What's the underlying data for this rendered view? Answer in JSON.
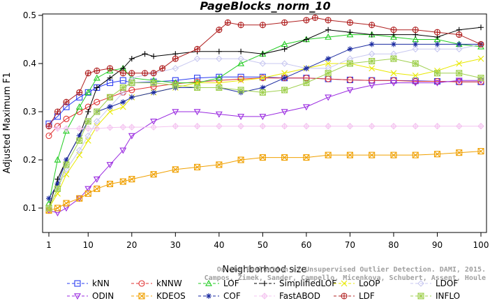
{
  "chart_data": {
    "type": "line",
    "title": "PageBlocks_norm_10",
    "xlabel": "Neighborhood size",
    "ylabel": "Adjusted Maximum F1",
    "xlim": [
      1,
      100
    ],
    "ylim": [
      0.08,
      0.5
    ],
    "xticks": [
      "1",
      "10",
      "20",
      "30",
      "40",
      "50",
      "60",
      "70",
      "80",
      "90",
      "100"
    ],
    "yticks": [
      "0.1",
      "0.2",
      "0.3",
      "0.4",
      "0.5"
    ],
    "legend_position": "bottom",
    "grid": false,
    "watermark": "Campos, Zimek, Sander, Campello, Micenkova, Schubert, Assent, Houle",
    "watermark_line1": "On the Evaluation of Unsupervised Outlier Detection. DAMI, 2015.",
    "series": [
      {
        "name": "kNN",
        "color": "#2a3cf0",
        "marker": "square",
        "x": [
          1,
          3,
          5,
          8,
          10,
          12,
          15,
          18,
          20,
          25,
          30,
          35,
          40,
          45,
          50,
          55,
          60,
          65,
          70,
          75,
          80,
          85,
          90,
          95,
          100
        ],
        "values": [
          0.275,
          0.29,
          0.31,
          0.33,
          0.34,
          0.35,
          0.36,
          0.365,
          0.36,
          0.362,
          0.365,
          0.37,
          0.372,
          0.372,
          0.372,
          0.37,
          0.37,
          0.368,
          0.366,
          0.365,
          0.365,
          0.364,
          0.363,
          0.362,
          0.362
        ]
      },
      {
        "name": "kNNW",
        "color": "#e03030",
        "marker": "circle",
        "x": [
          1,
          3,
          5,
          8,
          10,
          12,
          15,
          18,
          20,
          25,
          30,
          35,
          40,
          45,
          50,
          55,
          60,
          65,
          70,
          75,
          80,
          85,
          90,
          95,
          100
        ],
        "values": [
          0.25,
          0.27,
          0.285,
          0.3,
          0.31,
          0.32,
          0.33,
          0.34,
          0.345,
          0.352,
          0.358,
          0.362,
          0.365,
          0.368,
          0.37,
          0.37,
          0.37,
          0.368,
          0.366,
          0.365,
          0.365,
          0.363,
          0.363,
          0.362,
          0.362
        ]
      },
      {
        "name": "LOF",
        "color": "#22cc22",
        "marker": "triangle",
        "x": [
          1,
          3,
          5,
          8,
          10,
          12,
          15,
          18,
          20,
          25,
          30,
          35,
          40,
          45,
          50,
          55,
          60,
          65,
          70,
          75,
          80,
          85,
          90,
          95,
          100
        ],
        "values": [
          0.11,
          0.2,
          0.26,
          0.31,
          0.34,
          0.37,
          0.385,
          0.39,
          0.37,
          0.365,
          0.36,
          0.36,
          0.37,
          0.4,
          0.42,
          0.44,
          0.45,
          0.455,
          0.46,
          0.46,
          0.455,
          0.45,
          0.45,
          0.44,
          0.435
        ]
      },
      {
        "name": "SimplifiedLOF",
        "color": "#000000",
        "marker": "plus",
        "x": [
          1,
          3,
          5,
          8,
          10,
          12,
          15,
          18,
          20,
          23,
          25,
          30,
          35,
          40,
          45,
          50,
          55,
          60,
          65,
          70,
          75,
          80,
          85,
          90,
          95,
          100
        ],
        "values": [
          0.1,
          0.16,
          0.2,
          0.25,
          0.3,
          0.35,
          0.37,
          0.39,
          0.41,
          0.42,
          0.415,
          0.42,
          0.425,
          0.425,
          0.425,
          0.42,
          0.43,
          0.45,
          0.47,
          0.465,
          0.46,
          0.46,
          0.46,
          0.455,
          0.47,
          0.475
        ]
      },
      {
        "name": "LoOP",
        "color": "#e8e800",
        "marker": "cross",
        "x": [
          1,
          3,
          5,
          8,
          10,
          12,
          15,
          18,
          20,
          25,
          30,
          35,
          40,
          45,
          50,
          55,
          60,
          65,
          70,
          75,
          80,
          85,
          90,
          95,
          100
        ],
        "values": [
          0.1,
          0.13,
          0.17,
          0.21,
          0.24,
          0.27,
          0.3,
          0.31,
          0.33,
          0.34,
          0.35,
          0.36,
          0.36,
          0.365,
          0.37,
          0.38,
          0.39,
          0.4,
          0.4,
          0.39,
          0.38,
          0.375,
          0.385,
          0.4,
          0.41
        ]
      },
      {
        "name": "LDOF",
        "color": "#c8c8f0",
        "marker": "diamond",
        "x": [
          1,
          3,
          5,
          8,
          10,
          12,
          15,
          18,
          20,
          25,
          30,
          35,
          40,
          45,
          50,
          55,
          60,
          65,
          70,
          75,
          80,
          85,
          90,
          95,
          100
        ],
        "values": [
          0.1,
          0.14,
          0.18,
          0.22,
          0.25,
          0.28,
          0.31,
          0.34,
          0.37,
          0.38,
          0.39,
          0.41,
          0.41,
          0.41,
          0.4,
          0.4,
          0.39,
          0.39,
          0.41,
          0.42,
          0.42,
          0.43,
          0.43,
          0.43,
          0.44
        ]
      },
      {
        "name": "ODIN",
        "color": "#9a2ae0",
        "marker": "triangle-down",
        "x": [
          1,
          3,
          5,
          8,
          10,
          12,
          15,
          18,
          20,
          25,
          30,
          35,
          40,
          45,
          50,
          55,
          60,
          65,
          70,
          75,
          80,
          85,
          90,
          95,
          100
        ],
        "values": [
          0.095,
          0.09,
          0.1,
          0.12,
          0.14,
          0.16,
          0.19,
          0.22,
          0.25,
          0.28,
          0.3,
          0.3,
          0.295,
          0.29,
          0.29,
          0.3,
          0.31,
          0.33,
          0.345,
          0.355,
          0.36,
          0.36,
          0.36,
          0.365,
          0.365
        ]
      },
      {
        "name": "KDEOS",
        "color": "#f0a000",
        "marker": "box-x",
        "x": [
          1,
          3,
          5,
          8,
          10,
          12,
          15,
          18,
          20,
          25,
          30,
          35,
          40,
          45,
          50,
          55,
          60,
          65,
          70,
          75,
          80,
          85,
          90,
          95,
          100
        ],
        "values": [
          0.095,
          0.1,
          0.11,
          0.12,
          0.13,
          0.14,
          0.15,
          0.155,
          0.16,
          0.17,
          0.18,
          0.185,
          0.19,
          0.2,
          0.205,
          0.205,
          0.205,
          0.21,
          0.21,
          0.21,
          0.21,
          0.21,
          0.212,
          0.215,
          0.218
        ]
      },
      {
        "name": "COF",
        "color": "#1a2aa0",
        "marker": "asterisk",
        "x": [
          1,
          3,
          5,
          8,
          10,
          12,
          15,
          18,
          20,
          25,
          30,
          35,
          40,
          45,
          50,
          55,
          60,
          65,
          70,
          75,
          80,
          85,
          90,
          95,
          100
        ],
        "values": [
          0.12,
          0.15,
          0.2,
          0.25,
          0.28,
          0.3,
          0.31,
          0.32,
          0.33,
          0.34,
          0.35,
          0.35,
          0.35,
          0.34,
          0.35,
          0.37,
          0.39,
          0.41,
          0.43,
          0.44,
          0.44,
          0.44,
          0.44,
          0.44,
          0.44
        ]
      },
      {
        "name": "FastABOD",
        "color": "#f4c4f0",
        "marker": "diamond-x",
        "x": [
          1,
          3,
          5,
          8,
          10,
          12,
          15,
          18,
          20,
          25,
          30,
          35,
          40,
          45,
          50,
          55,
          60,
          65,
          70,
          75,
          80,
          85,
          90,
          95,
          100
        ],
        "values": [
          0.27,
          0.265,
          0.265,
          0.265,
          0.265,
          0.265,
          0.267,
          0.268,
          0.268,
          0.268,
          0.27,
          0.27,
          0.27,
          0.27,
          0.27,
          0.27,
          0.27,
          0.27,
          0.27,
          0.27,
          0.27,
          0.27,
          0.27,
          0.27,
          0.27
        ]
      },
      {
        "name": "LDF",
        "color": "#b02020",
        "marker": "circle-plus",
        "x": [
          1,
          3,
          5,
          8,
          10,
          12,
          15,
          18,
          20,
          23,
          25,
          27,
          30,
          35,
          40,
          42,
          45,
          50,
          55,
          60,
          62,
          65,
          70,
          75,
          80,
          85,
          90,
          95,
          100
        ],
        "values": [
          0.27,
          0.3,
          0.32,
          0.34,
          0.38,
          0.385,
          0.39,
          0.38,
          0.38,
          0.38,
          0.38,
          0.39,
          0.41,
          0.43,
          0.47,
          0.485,
          0.48,
          0.48,
          0.485,
          0.49,
          0.495,
          0.49,
          0.485,
          0.48,
          0.47,
          0.47,
          0.465,
          0.46,
          0.44
        ]
      },
      {
        "name": "INFLO",
        "color": "#a0d050",
        "marker": "star-box",
        "x": [
          1,
          3,
          5,
          8,
          10,
          12,
          15,
          18,
          20,
          25,
          30,
          35,
          40,
          45,
          50,
          55,
          60,
          65,
          70,
          75,
          80,
          85,
          90,
          95,
          100
        ],
        "values": [
          0.1,
          0.14,
          0.19,
          0.24,
          0.28,
          0.3,
          0.33,
          0.35,
          0.36,
          0.36,
          0.355,
          0.35,
          0.35,
          0.345,
          0.34,
          0.345,
          0.36,
          0.38,
          0.4,
          0.405,
          0.41,
          0.4,
          0.38,
          0.38,
          0.37
        ]
      }
    ]
  }
}
